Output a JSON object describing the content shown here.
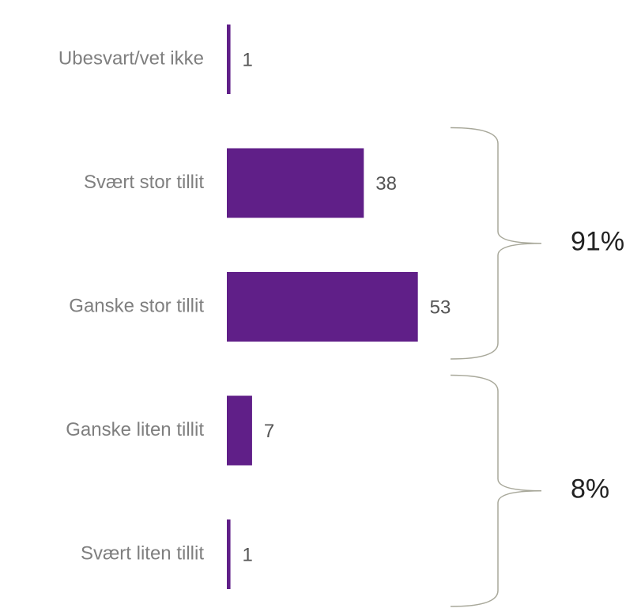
{
  "chart_data": {
    "type": "bar",
    "orientation": "horizontal",
    "categories": [
      "Ubesvart/vet ikke",
      "Svært stor tillit",
      "Ganske stor tillit",
      "Ganske liten tillit",
      "Svært liten tillit"
    ],
    "values": [
      1,
      38,
      53,
      7,
      1
    ],
    "color": "#601f88",
    "annotations": [
      "91%",
      "8%"
    ]
  }
}
